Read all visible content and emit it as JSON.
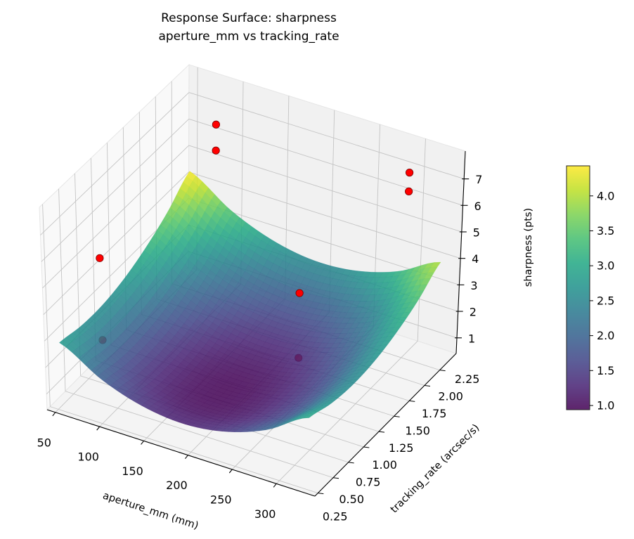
{
  "chart_data": {
    "type": "surface3d",
    "title": "Response Surface: sharpness",
    "subtitle": "aperture_mm vs tracking_rate",
    "xlabel": "aperture_mm (mm)",
    "ylabel": "tracking_rate (arcsec/s)",
    "zlabel": "sharpness (pts)",
    "colorbar_label": "sharpness (pts)",
    "colormap": "viridis",
    "xlim": [
      40.6,
      343.6
    ],
    "ylim": [
      0.2,
      2.52
    ],
    "zlim": [
      0.41,
      8.05
    ],
    "x_ticks": [
      "50",
      "100",
      "150",
      "200",
      "250",
      "300"
    ],
    "y_ticks": [
      "0.25",
      "0.50",
      "0.75",
      "1.00",
      "1.25",
      "1.50",
      "1.75",
      "2.00",
      "2.25"
    ],
    "z_ticks": [
      "1",
      "2",
      "3",
      "4",
      "5",
      "6",
      "7"
    ],
    "colorbar_range": [
      0.94,
      4.43
    ],
    "colorbar_ticks": [
      "1.0",
      "1.5",
      "2.0",
      "2.5",
      "3.0",
      "3.5",
      "4.0"
    ],
    "grid": true,
    "surface": {
      "x": [
        50,
        97,
        143,
        190,
        237,
        283,
        330
      ],
      "y": [
        0.3,
        0.65,
        1.0,
        1.35,
        1.7,
        2.05,
        2.4
      ],
      "z": [
        [
          2.81,
          1.92,
          1.4,
          1.24,
          1.46,
          2.04,
          2.99
        ],
        [
          2.63,
          1.72,
          1.18,
          1.01,
          1.21,
          1.77,
          2.71
        ],
        [
          2.62,
          1.7,
          1.14,
          0.95,
          1.14,
          1.68,
          2.6
        ],
        [
          2.8,
          1.86,
          1.28,
          1.08,
          1.24,
          1.78,
          2.68
        ],
        [
          3.16,
          2.2,
          1.61,
          1.39,
          1.53,
          2.05,
          2.94
        ],
        [
          3.69,
          2.72,
          2.11,
          1.87,
          2.01,
          2.5,
          3.37
        ],
        [
          4.41,
          3.42,
          2.8,
          2.54,
          2.66,
          3.14,
          3.99
        ]
      ]
    },
    "points": [
      {
        "x": 79,
        "y": 2.4,
        "z": 6.48
      },
      {
        "x": 79,
        "y": 2.4,
        "z": 5.5
      },
      {
        "x": 292,
        "y": 2.4,
        "z": 6.96
      },
      {
        "x": 292,
        "y": 2.4,
        "z": 6.25
      },
      {
        "x": 47,
        "y": 1.01,
        "z": 4.32
      },
      {
        "x": 221,
        "y": 1.71,
        "z": 3.25
      },
      {
        "x": 56,
        "y": 0.9,
        "z": 1.58
      },
      {
        "x": 229,
        "y": 1.59,
        "z": 1.17
      }
    ],
    "point_color": "#ff0000"
  }
}
